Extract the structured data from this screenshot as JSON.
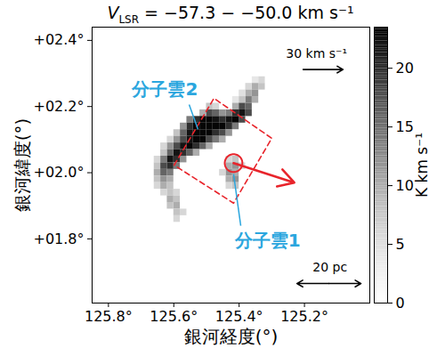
{
  "chart_data": {
    "type": "heatmap",
    "title": "VLSR = −57.3 − −50.0 km s⁻¹",
    "xlabel": "銀河経度(°)",
    "ylabel": "銀河緯度(°)",
    "xlim": [
      125.85,
      125.0
    ],
    "xticks": [
      {
        "value": 125.8,
        "label": "125.8°"
      },
      {
        "value": 125.6,
        "label": "125.6°"
      },
      {
        "value": 125.4,
        "label": "125.4°"
      },
      {
        "value": 125.2,
        "label": "125.2°"
      }
    ],
    "ylim": [
      1.606,
      2.44
    ],
    "yticks": [
      {
        "value": 2.4,
        "label": "+02.4°"
      },
      {
        "value": 2.2,
        "label": "+02.2°"
      },
      {
        "value": 2.0,
        "label": "+02.0°"
      },
      {
        "value": 1.8,
        "label": "+01.8°"
      }
    ],
    "color": "greys",
    "cell_size": 0.02,
    "cells": [
      [
        125.33,
        2.28,
        6
      ],
      [
        125.35,
        2.28,
        4
      ],
      [
        125.33,
        2.26,
        8
      ],
      [
        125.35,
        2.26,
        10
      ],
      [
        125.37,
        2.26,
        6
      ],
      [
        125.35,
        2.24,
        12
      ],
      [
        125.37,
        2.24,
        10
      ],
      [
        125.39,
        2.24,
        5
      ],
      [
        125.35,
        2.22,
        10
      ],
      [
        125.37,
        2.22,
        14
      ],
      [
        125.39,
        2.22,
        8
      ],
      [
        125.41,
        2.22,
        4
      ],
      [
        125.37,
        2.2,
        16
      ],
      [
        125.39,
        2.2,
        18
      ],
      [
        125.41,
        2.2,
        10
      ],
      [
        125.47,
        2.2,
        6
      ],
      [
        125.49,
        2.2,
        8
      ],
      [
        125.37,
        2.18,
        18
      ],
      [
        125.39,
        2.18,
        22
      ],
      [
        125.41,
        2.18,
        20
      ],
      [
        125.43,
        2.18,
        14
      ],
      [
        125.45,
        2.18,
        12
      ],
      [
        125.47,
        2.18,
        16
      ],
      [
        125.49,
        2.18,
        18
      ],
      [
        125.51,
        2.18,
        10
      ],
      [
        125.39,
        2.16,
        18
      ],
      [
        125.41,
        2.16,
        23
      ],
      [
        125.43,
        2.16,
        22
      ],
      [
        125.45,
        2.16,
        20
      ],
      [
        125.47,
        2.16,
        22
      ],
      [
        125.49,
        2.16,
        23
      ],
      [
        125.51,
        2.16,
        23
      ],
      [
        125.53,
        2.16,
        20
      ],
      [
        125.55,
        2.16,
        14
      ],
      [
        125.41,
        2.14,
        14
      ],
      [
        125.43,
        2.14,
        20
      ],
      [
        125.45,
        2.14,
        23
      ],
      [
        125.47,
        2.14,
        23
      ],
      [
        125.49,
        2.14,
        23
      ],
      [
        125.51,
        2.14,
        23
      ],
      [
        125.53,
        2.14,
        23
      ],
      [
        125.55,
        2.14,
        20
      ],
      [
        125.57,
        2.14,
        12
      ],
      [
        125.43,
        2.12,
        12
      ],
      [
        125.45,
        2.12,
        18
      ],
      [
        125.47,
        2.12,
        20
      ],
      [
        125.49,
        2.12,
        23
      ],
      [
        125.51,
        2.12,
        23
      ],
      [
        125.53,
        2.12,
        23
      ],
      [
        125.55,
        2.12,
        22
      ],
      [
        125.57,
        2.12,
        16
      ],
      [
        125.59,
        2.12,
        8
      ],
      [
        125.45,
        2.1,
        10
      ],
      [
        125.47,
        2.1,
        14
      ],
      [
        125.49,
        2.1,
        18
      ],
      [
        125.51,
        2.1,
        23
      ],
      [
        125.53,
        2.1,
        23
      ],
      [
        125.55,
        2.1,
        22
      ],
      [
        125.57,
        2.1,
        18
      ],
      [
        125.59,
        2.1,
        12
      ],
      [
        125.61,
        2.1,
        6
      ],
      [
        125.49,
        2.08,
        10
      ],
      [
        125.51,
        2.08,
        16
      ],
      [
        125.53,
        2.08,
        20
      ],
      [
        125.55,
        2.08,
        23
      ],
      [
        125.57,
        2.08,
        22
      ],
      [
        125.59,
        2.08,
        18
      ],
      [
        125.61,
        2.08,
        12
      ],
      [
        125.63,
        2.08,
        6
      ],
      [
        125.53,
        2.06,
        10
      ],
      [
        125.55,
        2.06,
        16
      ],
      [
        125.57,
        2.06,
        20
      ],
      [
        125.59,
        2.06,
        22
      ],
      [
        125.61,
        2.06,
        16
      ],
      [
        125.63,
        2.06,
        8
      ],
      [
        125.41,
        2.04,
        8
      ],
      [
        125.43,
        2.04,
        6
      ],
      [
        125.57,
        2.04,
        12
      ],
      [
        125.59,
        2.04,
        20
      ],
      [
        125.61,
        2.04,
        22
      ],
      [
        125.63,
        2.04,
        14
      ],
      [
        125.65,
        2.04,
        6
      ],
      [
        125.39,
        2.02,
        6
      ],
      [
        125.41,
        2.02,
        12
      ],
      [
        125.43,
        2.02,
        10
      ],
      [
        125.59,
        2.02,
        14
      ],
      [
        125.61,
        2.02,
        20
      ],
      [
        125.63,
        2.02,
        18
      ],
      [
        125.65,
        2.02,
        8
      ],
      [
        125.41,
        2.0,
        10
      ],
      [
        125.43,
        2.0,
        12
      ],
      [
        125.45,
        2.0,
        6
      ],
      [
        125.61,
        2.0,
        14
      ],
      [
        125.63,
        2.0,
        16
      ],
      [
        125.65,
        2.0,
        10
      ],
      [
        125.41,
        1.98,
        12
      ],
      [
        125.43,
        1.98,
        10
      ],
      [
        125.61,
        1.98,
        10
      ],
      [
        125.63,
        1.98,
        12
      ],
      [
        125.65,
        1.98,
        8
      ],
      [
        125.41,
        1.96,
        8
      ],
      [
        125.43,
        1.96,
        6
      ],
      [
        125.61,
        1.96,
        8
      ],
      [
        125.63,
        1.96,
        10
      ],
      [
        125.65,
        1.96,
        6
      ],
      [
        125.59,
        1.94,
        6
      ],
      [
        125.61,
        1.94,
        8
      ],
      [
        125.63,
        1.94,
        6
      ],
      [
        125.59,
        1.92,
        8
      ],
      [
        125.61,
        1.92,
        10
      ],
      [
        125.59,
        1.9,
        10
      ],
      [
        125.61,
        1.9,
        8
      ],
      [
        125.57,
        1.88,
        6
      ],
      [
        125.59,
        1.88,
        8
      ],
      [
        125.59,
        1.86,
        6
      ]
    ],
    "colorbar": {
      "label": "K km s⁻¹",
      "lim": [
        0,
        23.5
      ],
      "ticks": [
        0,
        5,
        10,
        15,
        20
      ]
    },
    "annotations": {
      "labels": [
        {
          "text": "分子雲2",
          "x": 125.627,
          "y": 2.252,
          "line": [
            [
              125.553,
              2.206
            ],
            [
              125.526,
              2.131
            ]
          ]
        },
        {
          "text": "分子雲1",
          "x": 125.313,
          "y": 1.795,
          "line": [
            [
              125.395,
              1.84
            ],
            [
              125.417,
              1.996
            ]
          ]
        }
      ],
      "region": [
        [
          125.599,
          2.023
        ],
        [
          125.477,
          2.225
        ],
        [
          125.3,
          2.104
        ],
        [
          125.417,
          1.908
        ]
      ],
      "circle": {
        "x": 125.417,
        "y": 2.029,
        "r": 0.027
      },
      "motion": [
        [
          125.417,
          2.029
        ],
        [
          125.231,
          1.97
        ]
      ],
      "scale_bars": [
        {
          "text": "30 km s⁻¹",
          "x": 125.163,
          "y": 2.36,
          "from": [
            125.204,
            2.312
          ],
          "to": [
            125.082,
            2.312
          ],
          "both_ends": false
        },
        {
          "text": "20 pc",
          "x": 125.122,
          "y": 1.714,
          "from": [
            125.223,
            1.665
          ],
          "to": [
            125.027,
            1.665
          ],
          "both_ends": true
        }
      ]
    }
  }
}
